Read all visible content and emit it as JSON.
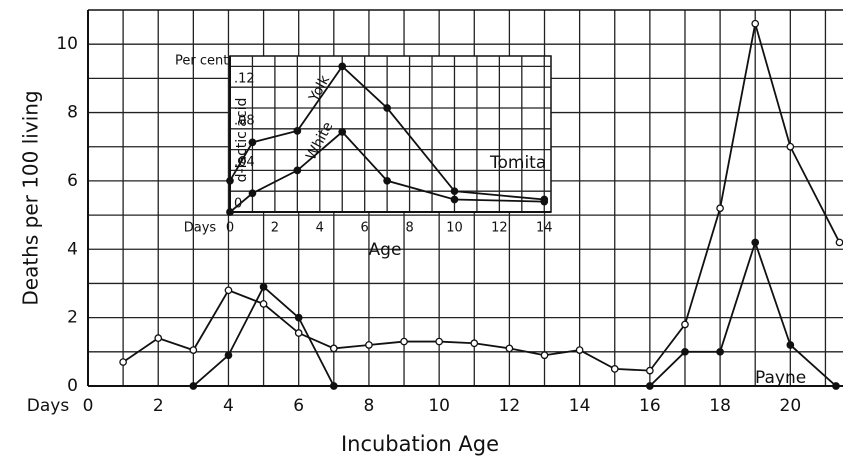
{
  "chart_data": [
    {
      "type": "line",
      "ylabel": "Deaths per 100 living",
      "xlabel": "Incubation Age",
      "x_prefix": "Days",
      "annotation": "Payne",
      "xlim": [
        0,
        21.5
      ],
      "ylim": [
        0,
        11
      ],
      "xticks": [
        0,
        2,
        4,
        6,
        8,
        10,
        12,
        14,
        16,
        18,
        20
      ],
      "yticks": [
        0,
        2,
        4,
        6,
        8,
        10
      ],
      "grid": true,
      "series": [
        {
          "marker": "open",
          "color": "#111",
          "x": [
            1,
            2,
            3,
            4,
            5,
            6,
            7,
            8,
            9,
            10,
            11,
            12,
            13,
            14,
            15,
            16,
            17,
            18,
            19,
            20,
            21.4
          ],
          "values": [
            0.7,
            1.4,
            1.05,
            2.8,
            2.4,
            1.55,
            1.1,
            1.2,
            1.3,
            1.3,
            1.25,
            1.1,
            0.9,
            1.05,
            0.5,
            0.45,
            1.8,
            5.2,
            10.6,
            7.0,
            4.2
          ]
        },
        {
          "marker": "filled",
          "color": "#111",
          "x": [
            3,
            4,
            5,
            6,
            7
          ],
          "values": [
            0,
            0.9,
            2.9,
            2.0,
            0
          ]
        },
        {
          "marker": "filled",
          "color": "#111",
          "x": [
            16,
            17,
            18,
            19,
            20,
            21.3
          ],
          "values": [
            0,
            1.0,
            1.0,
            4.2,
            1.2,
            0
          ]
        }
      ]
    },
    {
      "type": "line",
      "ylabel": "d-lactic acid",
      "yunit": "Per cent",
      "xlabel": "Age",
      "x_prefix": "Days",
      "annotation": "Tomita",
      "xlim": [
        0,
        14.3
      ],
      "ylim": [
        0,
        0.15
      ],
      "xticks": [
        0,
        2,
        4,
        6,
        8,
        10,
        12,
        14
      ],
      "yticks": [
        0,
        {
          "value": 0.04,
          "label": ".04"
        },
        {
          "value": 0.08,
          "label": ".08"
        },
        {
          "value": 0.12,
          "label": ".12"
        }
      ],
      "grid": true,
      "series": [
        {
          "name": "Yolk",
          "marker": "filled",
          "color": "#111",
          "x": [
            0,
            1,
            3,
            5,
            7,
            10,
            14
          ],
          "values": [
            0.03,
            0.067,
            0.078,
            0.14,
            0.1,
            0.02,
            0.012
          ]
        },
        {
          "name": "White",
          "marker": "filled",
          "color": "#111",
          "x": [
            0,
            1,
            3,
            5,
            7,
            10,
            14
          ],
          "values": [
            0,
            0.018,
            0.04,
            0.077,
            0.03,
            0.012,
            0.01
          ]
        }
      ]
    }
  ]
}
